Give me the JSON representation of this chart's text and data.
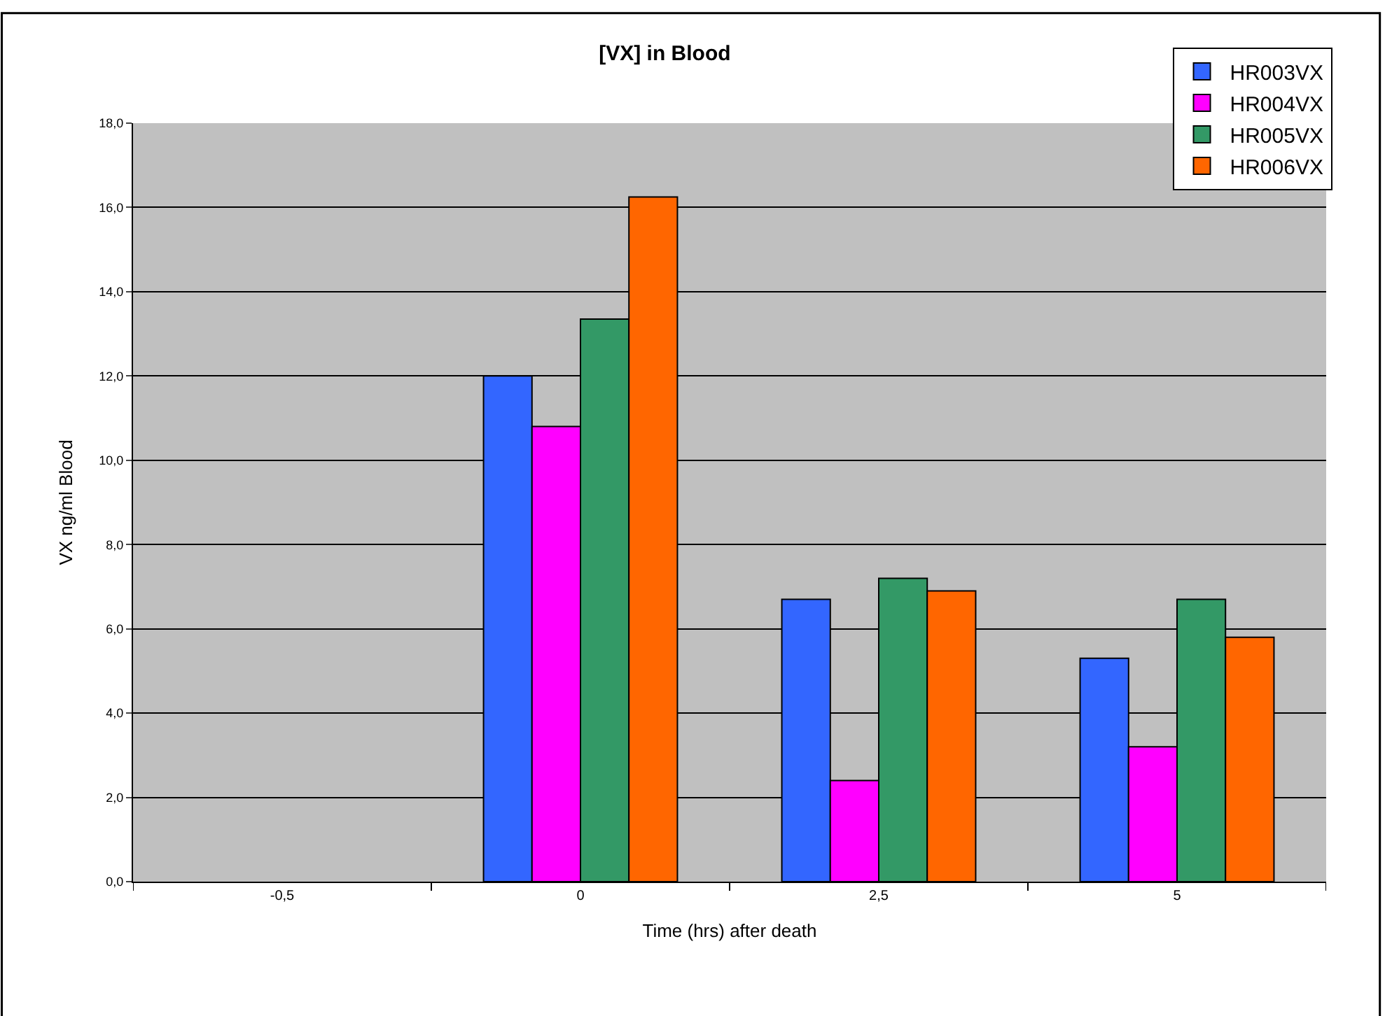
{
  "chart_data": {
    "type": "bar",
    "title": "[VX] in Blood",
    "xlabel": "Time (hrs) after death",
    "ylabel": "VX ng/ml Blood",
    "categories": [
      "-0,5",
      "0",
      "2,5",
      "5"
    ],
    "series": [
      {
        "name": "HR003VX",
        "color": "#3366ff",
        "values": [
          null,
          12.0,
          6.7,
          5.3
        ]
      },
      {
        "name": "HR004VX",
        "color": "#ff00ff",
        "values": [
          null,
          10.8,
          2.4,
          3.2
        ]
      },
      {
        "name": "HR005VX",
        "color": "#339966",
        "values": [
          null,
          13.35,
          7.2,
          6.7
        ]
      },
      {
        "name": "HR006VX",
        "color": "#ff6600",
        "values": [
          null,
          16.25,
          6.9,
          5.8
        ]
      }
    ],
    "ylim": [
      0,
      18
    ],
    "yticks": [
      {
        "value": 0,
        "label": "0,0"
      },
      {
        "value": 2,
        "label": "2,0"
      },
      {
        "value": 4,
        "label": "4,0"
      },
      {
        "value": 6,
        "label": "6,0"
      },
      {
        "value": 8,
        "label": "8,0"
      },
      {
        "value": 10,
        "label": "10,0"
      },
      {
        "value": 12,
        "label": "12,0"
      },
      {
        "value": 14,
        "label": "14,0"
      },
      {
        "value": 16,
        "label": "16,0"
      },
      {
        "value": 18,
        "label": "18,0"
      }
    ],
    "grid": "y",
    "legend": "top right"
  }
}
